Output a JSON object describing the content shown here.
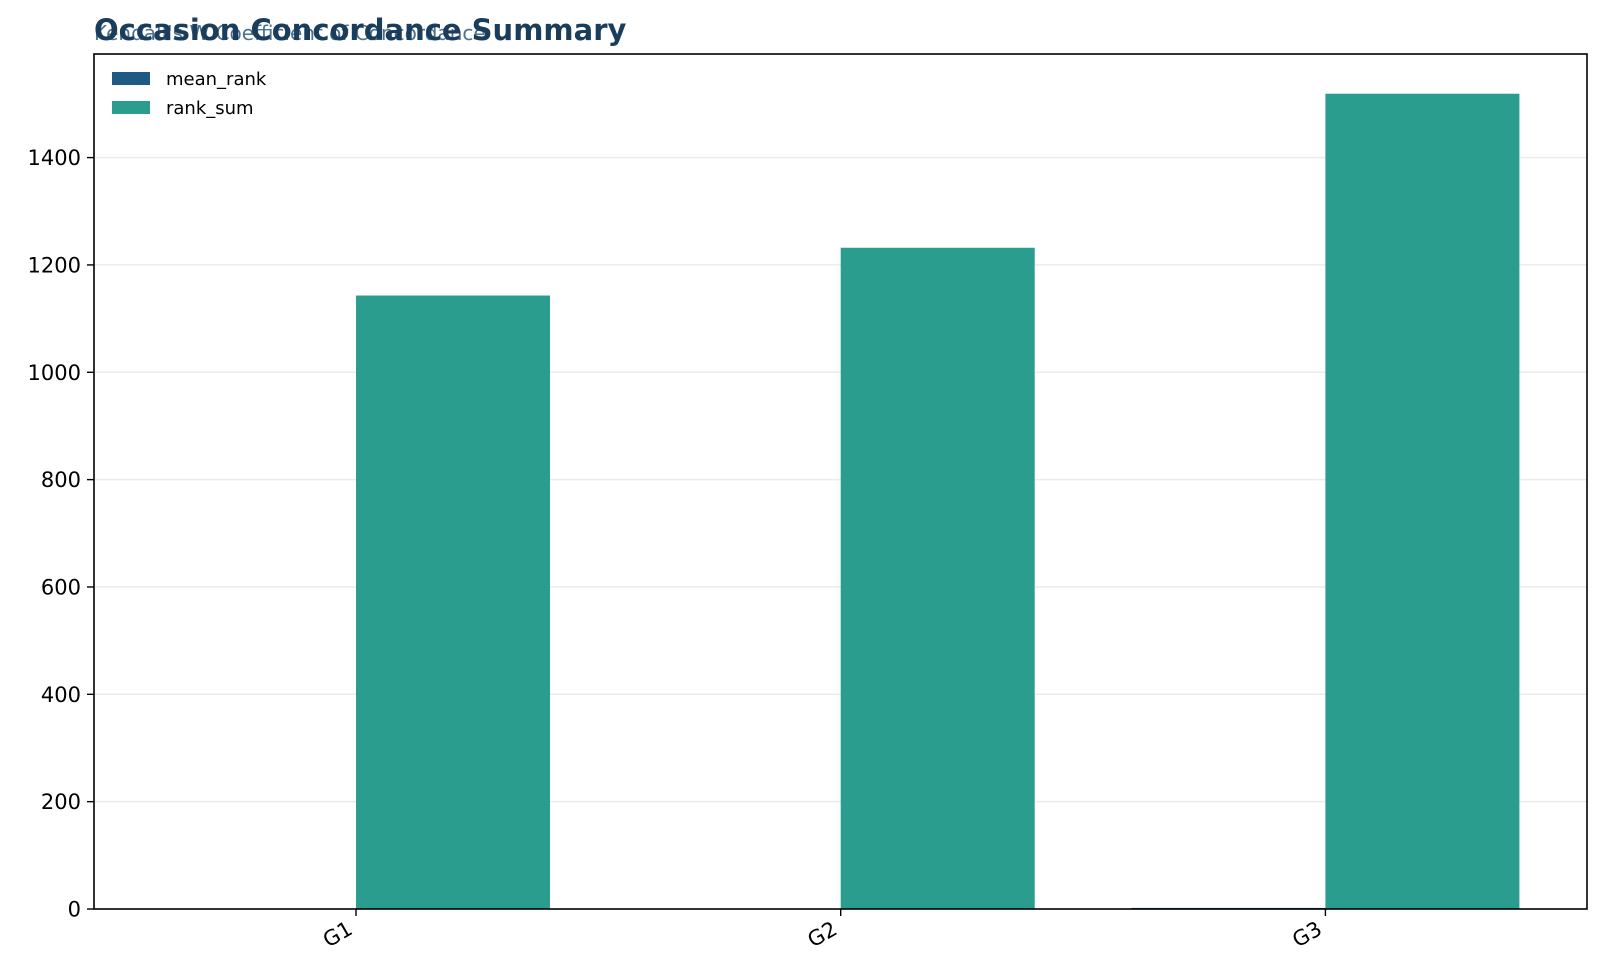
{
  "chart_data": {
    "type": "bar",
    "title": "Occasion Concordance Summary",
    "subtitle": "Kendall's W Coefficient of Concordance",
    "xlabel": "",
    "ylabel": "",
    "categories": [
      "G1",
      "G2",
      "G3"
    ],
    "series": [
      {
        "name": "mean_rank",
        "values": [
          0.0,
          0.0,
          2.0
        ]
      },
      {
        "name": "rank_sum",
        "values": [
          1143,
          1232,
          1519
        ]
      }
    ],
    "ylim": [
      0,
      1593
    ],
    "yticks": [
      0,
      200,
      400,
      600,
      800,
      1000,
      1200,
      1400
    ],
    "grid": "y",
    "legend_position": "top-left"
  },
  "colors": {
    "title": "#1a3d5c",
    "subtitle": "#2f5a7a",
    "mean_rank": "#1f5a85",
    "rank_sum": "#2a9d8f",
    "grid": "#ebebeb",
    "axis": "#000000"
  }
}
